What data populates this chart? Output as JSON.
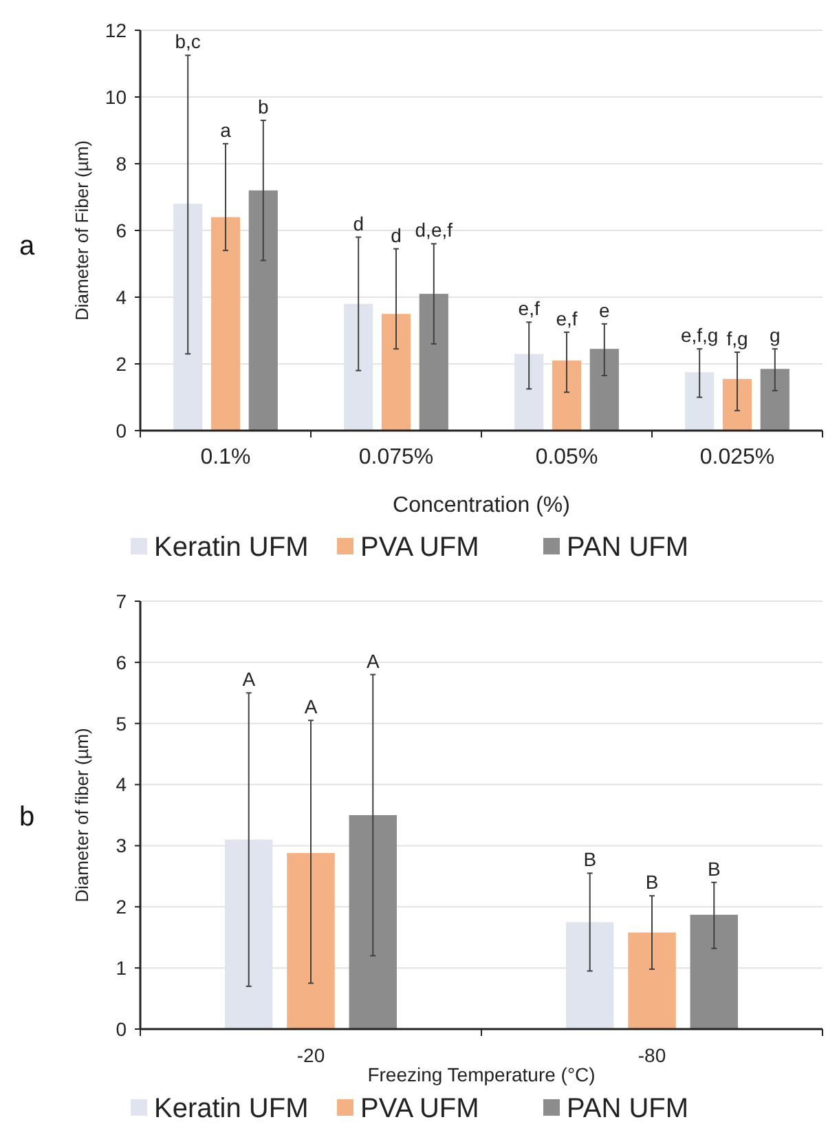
{
  "chart_data": [
    {
      "type": "bar",
      "xlabel": "Concentration (%)",
      "ylabel": "Diameter of Fiber (µm)",
      "categories": [
        "0.1%",
        "0.075%",
        "0.05%",
        "0.025%"
      ],
      "ylim": [
        0,
        12
      ],
      "yticks": [
        0,
        2,
        4,
        6,
        8,
        10,
        12
      ],
      "grid": "y",
      "legend": "bottom",
      "annotations": [
        "a",
        "b,c",
        "a",
        "b",
        "d",
        "d",
        "d,e,f",
        "e,f",
        "e,f",
        "e",
        "e,f,g",
        "f,g",
        "g"
      ],
      "series": [
        {
          "name": "Keratin UFM",
          "color": "#dfe4ee",
          "values": [
            6.8,
            3.8,
            2.3,
            1.75
          ],
          "errors": [
            [
              2.3,
              11.25
            ],
            [
              1.8,
              5.8
            ],
            [
              1.25,
              3.25
            ],
            [
              1.0,
              2.45
            ]
          ]
        },
        {
          "name": "PVA UFM",
          "color": "#f4b183",
          "values": [
            6.4,
            3.5,
            2.1,
            1.55
          ],
          "errors": [
            [
              5.4,
              8.6
            ],
            [
              2.45,
              5.45
            ],
            [
              1.15,
              2.95
            ],
            [
              0.6,
              2.35
            ]
          ]
        },
        {
          "name": "PAN UFM",
          "color": "#8c8c8c",
          "values": [
            7.2,
            4.1,
            2.45,
            1.85
          ],
          "errors": [
            [
              5.1,
              9.3
            ],
            [
              2.6,
              5.6
            ],
            [
              1.65,
              3.2
            ],
            [
              1.2,
              2.45
            ]
          ]
        }
      ]
    },
    {
      "type": "bar",
      "xlabel": "Freezing Temperature (°C)",
      "ylabel": "Diameter of fiber (µm)",
      "categories": [
        "-20",
        "-80"
      ],
      "ylim": [
        0,
        7
      ],
      "yticks": [
        0,
        1,
        2,
        3,
        4,
        5,
        6,
        7
      ],
      "grid": "y",
      "legend": "bottom",
      "annotations": [
        "b",
        "A",
        "A",
        "A",
        "B",
        "B",
        "B"
      ],
      "series": [
        {
          "name": "Keratin UFM",
          "color": "#dfe4ee",
          "values": [
            3.1,
            1.75
          ],
          "errors": [
            [
              0.7,
              5.5
            ],
            [
              0.95,
              2.55
            ]
          ]
        },
        {
          "name": "PVA UFM",
          "color": "#f4b183",
          "values": [
            2.88,
            1.58
          ],
          "errors": [
            [
              0.75,
              5.05
            ],
            [
              0.98,
              2.18
            ]
          ]
        },
        {
          "name": "PAN UFM",
          "color": "#8c8c8c",
          "values": [
            3.5,
            1.87
          ],
          "errors": [
            [
              1.2,
              5.8
            ],
            [
              1.32,
              2.4
            ]
          ]
        }
      ]
    }
  ]
}
